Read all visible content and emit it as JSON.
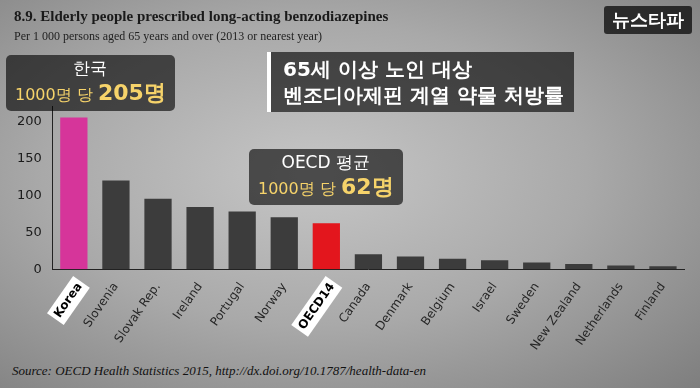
{
  "chart_data": {
    "type": "bar",
    "title": "8.9. Elderly people prescribed long-acting benzodiazepines",
    "subtitle": "Per 1 000 persons aged 65 years and over (2013 or nearest year)",
    "categories": [
      "Korea",
      "Slovenia",
      "Slovak Rep.",
      "Ireland",
      "Portugal",
      "Norway",
      "OECD14",
      "Canada",
      "Denmark",
      "Belgium",
      "Israel",
      "Sweden",
      "New Zealand",
      "Netherlands",
      "Finland"
    ],
    "values": [
      205,
      120,
      95,
      84,
      78,
      70,
      62,
      20,
      17,
      14,
      12,
      9,
      7,
      5,
      4
    ],
    "colors": [
      "#d6359a",
      "#3c3c3c",
      "#3c3c3c",
      "#3c3c3c",
      "#3c3c3c",
      "#3c3c3c",
      "#e3161d",
      "#3c3c3c",
      "#3c3c3c",
      "#3c3c3c",
      "#3c3c3c",
      "#3c3c3c",
      "#3c3c3c",
      "#3c3c3c",
      "#3c3c3c"
    ],
    "ylim": [
      0,
      220
    ],
    "yticks": [
      0,
      50,
      100,
      150,
      200
    ],
    "grid": false,
    "annotations": [
      {
        "category": "Korea",
        "lines": [
          "한국",
          "1000명 당 205명"
        ]
      },
      {
        "category": "OECD14",
        "lines": [
          "OECD 평균",
          "1000명 당 62명"
        ]
      }
    ],
    "headline": [
      "65세 이상 노인 대상",
      "벤조디아제핀 계열 약물 처방률"
    ],
    "source": "Source: OECD Health Statistics 2015, http://dx.doi.org/10.1787/health-data-en"
  },
  "logo": "뉴스타파"
}
